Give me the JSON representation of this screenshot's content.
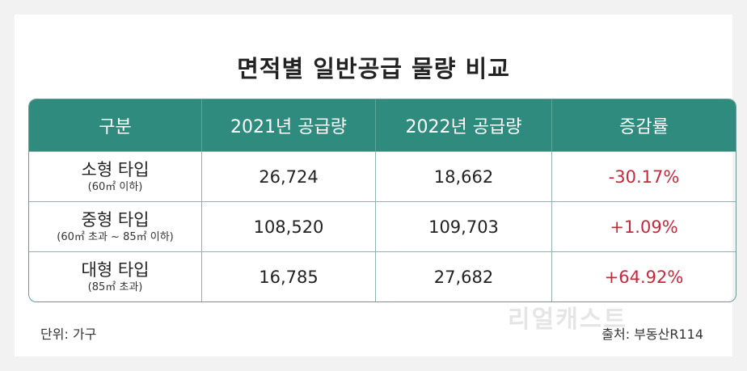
{
  "title": "면적별 일반공급 물량 비교",
  "headers": [
    "구분",
    "2021년 공급량",
    "2022년 공급량",
    "증감률"
  ],
  "rows": [
    {
      "type": "소형 타입",
      "sub": "(60㎡ 이하)",
      "y2021": "26,724",
      "y2022": "18,662",
      "change": "-30.17%"
    },
    {
      "type": "중형 타입",
      "sub": "(60㎡ 초과 ~ 85㎡ 이하)",
      "y2021": "108,520",
      "y2022": "109,703",
      "change": "+1.09%"
    },
    {
      "type": "대형 타입",
      "sub": "(85㎡ 초과)",
      "y2021": "16,785",
      "y2022": "27,682",
      "change": "+64.92%"
    }
  ],
  "footer": {
    "unit": "단위: 가구",
    "source": "출처: 부동산R114"
  },
  "watermark": "리얼캐스트",
  "colors": {
    "header_bg": "#2f8b7e",
    "change_text": "#c8283c"
  }
}
